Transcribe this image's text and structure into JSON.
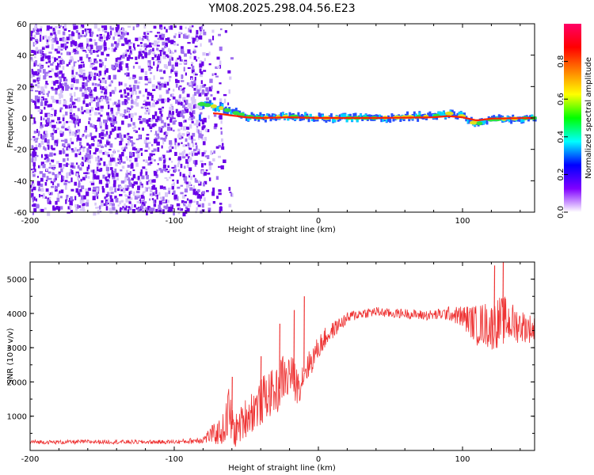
{
  "chart_data": [
    {
      "type": "heatmap",
      "title": "YM08.2025.298.04.56.E23",
      "xlabel": "Height of straight line (km)",
      "ylabel": "Frequency (Hz)",
      "xlim": [
        -200,
        150
      ],
      "ylim": [
        -60,
        60
      ],
      "xticks": [
        "-200",
        "-100",
        "0",
        "100"
      ],
      "yticks": [
        "60",
        "40",
        "20",
        "0",
        "-20",
        "-40",
        "-60"
      ],
      "colorbar": {
        "label": "Normalized spectral amplitude",
        "range": [
          0,
          1
        ],
        "ticks": [
          "0.0",
          "0.2",
          "0.4",
          "0.6",
          "0.8"
        ],
        "colors": [
          "#ffffff",
          "#8000ff",
          "#0000ff",
          "#00ffff",
          "#00ff00",
          "#ffff00",
          "#ff8000",
          "#ff0000",
          "#ff0066"
        ]
      },
      "description_points": {
        "noise_region_km": [
          -200,
          -80
        ],
        "signal_onset_km": -83,
        "signal_center_hz": 0,
        "signal_ridge_km": [
          -82,
          -70,
          -60,
          -50,
          -40,
          -20,
          0,
          40,
          80,
          90,
          100,
          110,
          120,
          150
        ],
        "signal_offset_hz": [
          9,
          7,
          4,
          1,
          0,
          1,
          0,
          0,
          1,
          3,
          1,
          -4,
          -1,
          0
        ]
      }
    },
    {
      "type": "line",
      "title": "",
      "xlabel": "Height of straight line (km)",
      "ylabel": "SNR (10 * v/v)",
      "xlim": [
        -200,
        150
      ],
      "ylim": [
        0,
        5500
      ],
      "xticks": [
        "-200",
        "-100",
        "0",
        "100"
      ],
      "yticks": [
        "1000",
        "2000",
        "3000",
        "4000",
        "5000"
      ],
      "series": [
        {
          "name": "SNR",
          "color": "#ee3333",
          "x": [
            -200,
            -180,
            -160,
            -140,
            -120,
            -100,
            -90,
            -80,
            -75,
            -70,
            -65,
            -62,
            -60,
            -58,
            -55,
            -50,
            -45,
            -40,
            -35,
            -30,
            -27,
            -25,
            -22,
            -20,
            -15,
            -12,
            -10,
            -5,
            0,
            5,
            10,
            15,
            20,
            25,
            30,
            40,
            50,
            60,
            70,
            80,
            90,
            95,
            100,
            105,
            110,
            115,
            120,
            125,
            130,
            135,
            140,
            145,
            150
          ],
          "values": [
            250,
            240,
            255,
            250,
            245,
            250,
            270,
            320,
            450,
            500,
            650,
            1200,
            700,
            550,
            700,
            1000,
            1200,
            1400,
            1650,
            1700,
            1800,
            2200,
            2000,
            2300,
            1900,
            2000,
            2300,
            2600,
            3000,
            3300,
            3500,
            3700,
            3850,
            3950,
            4000,
            4050,
            4000,
            4000,
            3950,
            3950,
            4000,
            3950,
            3900,
            3800,
            3650,
            3700,
            3600,
            3750,
            3800,
            3700,
            3650,
            3600,
            3500
          ],
          "noise_amplitude": [
            60,
            60,
            60,
            60,
            60,
            60,
            80,
            120,
            250,
            350,
            500,
            800,
            600,
            500,
            500,
            600,
            650,
            700,
            700,
            650,
            700,
            700,
            650,
            650,
            550,
            500,
            450,
            400,
            350,
            300,
            250,
            200,
            180,
            170,
            150,
            150,
            140,
            140,
            150,
            160,
            200,
            250,
            350,
            450,
            600,
            650,
            700,
            750,
            700,
            600,
            500,
            450,
            400
          ]
        }
      ],
      "spikes": {
        "x": [
          -60,
          -40,
          -27,
          -17,
          -10,
          122,
          128
        ],
        "values": [
          2150,
          2750,
          3700,
          4100,
          4500,
          5400,
          5500
        ]
      }
    }
  ]
}
